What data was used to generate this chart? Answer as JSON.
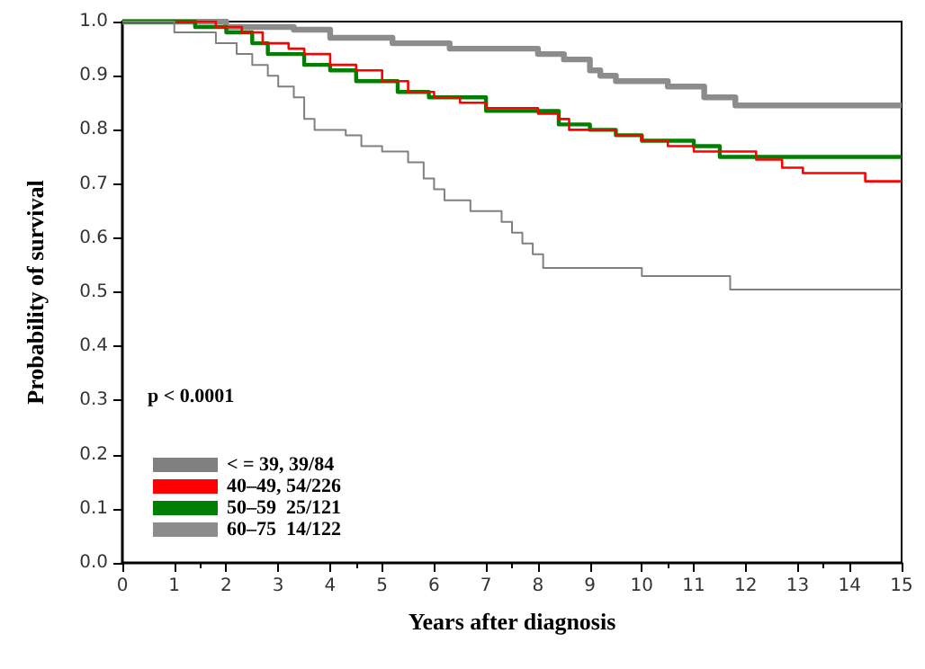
{
  "chart_data": {
    "type": "step",
    "xlabel": "Years after diagnosis",
    "ylabel": "Probability of survival",
    "annotations": [
      "p < 0.0001"
    ],
    "xlim": [
      0,
      15
    ],
    "xticks": [
      0,
      1,
      2,
      3,
      4,
      5,
      6,
      7,
      8,
      9,
      10,
      11,
      12,
      13,
      14,
      15
    ],
    "ylim": [
      0,
      1
    ],
    "yticks": [
      {
        "value": 0,
        "label": "0.0"
      },
      0.1,
      0.2,
      0.3,
      0.4,
      0.5,
      0.6,
      0.7,
      0.8,
      0.9,
      {
        "value": 1,
        "label": "1.0"
      }
    ],
    "grid": false,
    "legend": "bottom left",
    "marker": "none",
    "line_style": "solid",
    "series": [
      {
        "name": "< = 39, 39/84",
        "color": "#808080",
        "x": [
          0,
          1,
          1.8,
          2.2,
          2.5,
          2.8,
          3.0,
          3.3,
          3.5,
          3.7,
          4.3,
          4.6,
          5.0,
          5.5,
          5.8,
          6.0,
          6.2,
          6.7,
          7.3,
          7.5,
          7.7,
          7.9,
          8.1,
          10.0,
          11.7,
          15
        ],
        "values": [
          1,
          0.98,
          0.96,
          0.94,
          0.92,
          0.9,
          0.88,
          0.86,
          0.82,
          0.8,
          0.79,
          0.77,
          0.76,
          0.74,
          0.71,
          0.69,
          0.67,
          0.65,
          0.63,
          0.61,
          0.59,
          0.57,
          0.545,
          0.53,
          0.505,
          0.505
        ]
      },
      {
        "name": "40–49, 54/226",
        "color": "#ff0000",
        "x": [
          0,
          1.8,
          2.3,
          2.7,
          3.2,
          3.5,
          4.0,
          4.5,
          5.0,
          5.5,
          6.0,
          6.5,
          7.0,
          8.0,
          8.4,
          8.6,
          9.5,
          10.0,
          10.5,
          11.0,
          12.2,
          12.7,
          13.1,
          14.3,
          15
        ],
        "values": [
          1,
          0.99,
          0.98,
          0.96,
          0.95,
          0.94,
          0.92,
          0.91,
          0.89,
          0.87,
          0.86,
          0.85,
          0.84,
          0.83,
          0.82,
          0.8,
          0.79,
          0.78,
          0.77,
          0.76,
          0.745,
          0.73,
          0.72,
          0.705,
          0.705
        ]
      },
      {
        "name": "50–59  25/121",
        "color": "#008000",
        "x": [
          0,
          1.4,
          2.0,
          2.5,
          2.8,
          3.5,
          4.0,
          4.5,
          5.3,
          5.9,
          7.0,
          8.4,
          9.0,
          9.5,
          10.0,
          11.0,
          11.5,
          15
        ],
        "values": [
          1,
          0.99,
          0.98,
          0.96,
          0.94,
          0.92,
          0.91,
          0.89,
          0.87,
          0.86,
          0.835,
          0.81,
          0.8,
          0.79,
          0.78,
          0.77,
          0.75,
          0.75
        ]
      },
      {
        "name": "60–75  14/122",
        "color": "#8c8c8c",
        "x": [
          0,
          2.0,
          3.3,
          4.0,
          5.2,
          6.3,
          8.0,
          8.5,
          9.0,
          9.2,
          9.5,
          10.5,
          11.2,
          11.8,
          15
        ],
        "values": [
          1,
          0.99,
          0.985,
          0.97,
          0.96,
          0.95,
          0.94,
          0.93,
          0.91,
          0.9,
          0.89,
          0.88,
          0.86,
          0.845,
          0.845
        ]
      }
    ]
  }
}
